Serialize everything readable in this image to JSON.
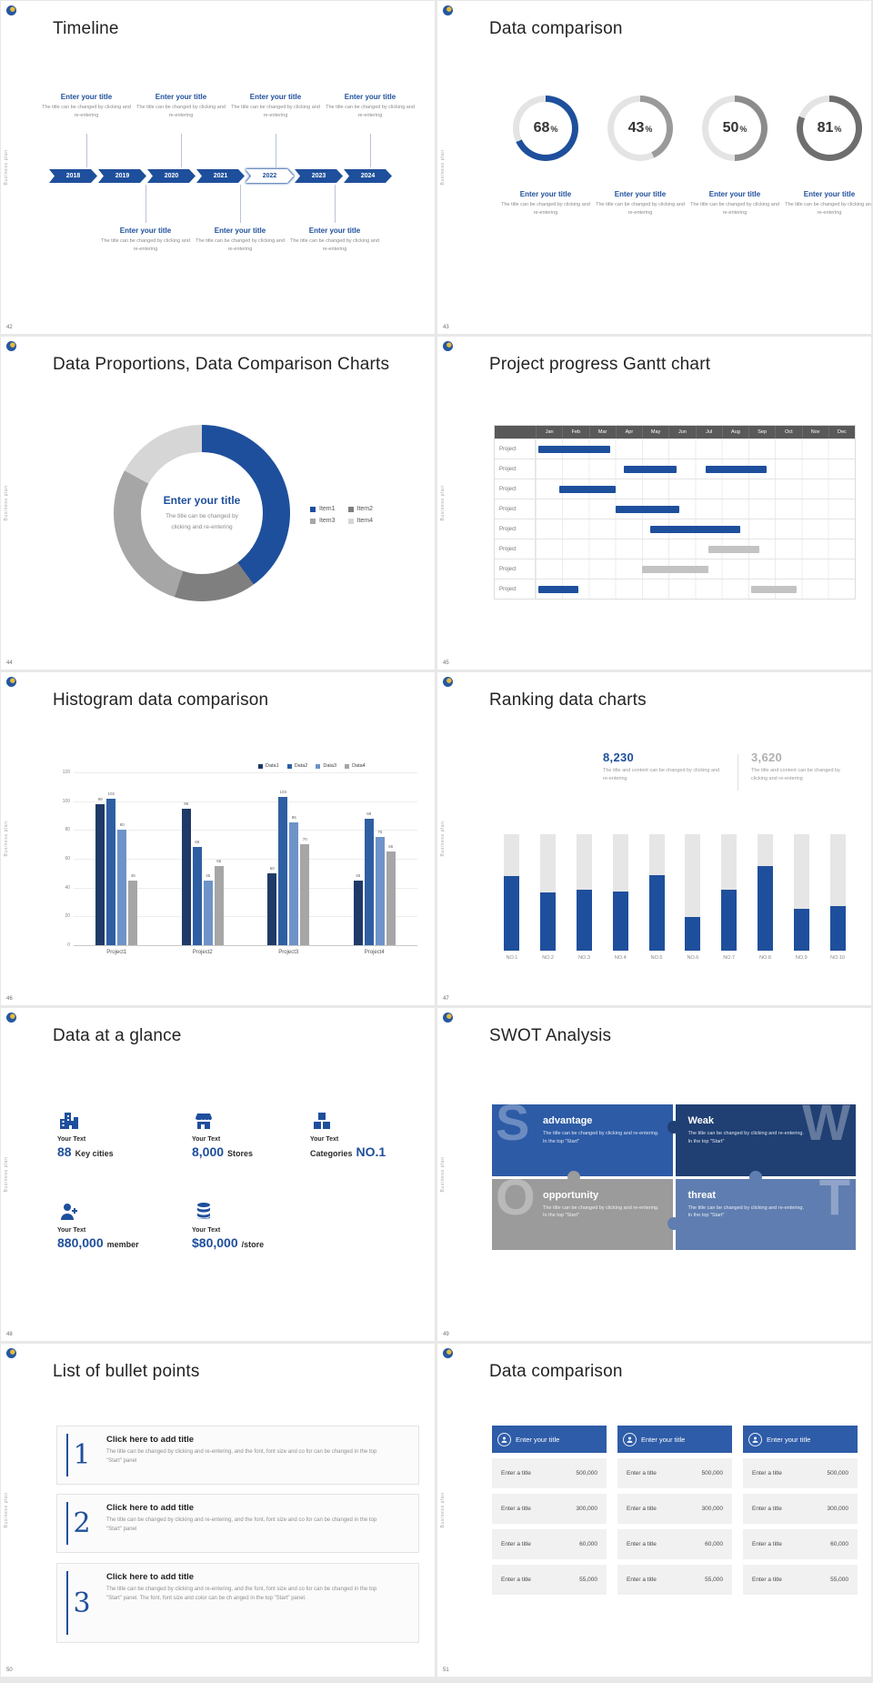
{
  "page": {
    "background": "#e8e8e8",
    "slide_background": "#ffffff"
  },
  "brand": {
    "sidebar_label": "Business plan",
    "accent_color": "#1e4f9c"
  },
  "slides": [
    {
      "number": "42",
      "title": "Timeline",
      "type": "timeline",
      "item_title": "Enter your title",
      "item_desc": "The title can be changed by clicking and re-entering",
      "years": [
        {
          "label": "2018",
          "style": "solid"
        },
        {
          "label": "2019",
          "style": "solid"
        },
        {
          "label": "2020",
          "style": "solid"
        },
        {
          "label": "2021",
          "style": "solid"
        },
        {
          "label": "2022",
          "style": "outline"
        },
        {
          "label": "2023",
          "style": "solid"
        },
        {
          "label": "2024",
          "style": "solid"
        }
      ],
      "top_items": 4,
      "bottom_items": 3
    },
    {
      "number": "43",
      "title": "Data comparison",
      "type": "donuts",
      "item_title": "Enter your title",
      "item_desc": "The title can be changed by clicking and re-entering",
      "chart_data": {
        "type": "donut-set",
        "unit": "%",
        "values": [
          68,
          43,
          50,
          81
        ],
        "ring_colors": [
          "#1e4f9c",
          "#9a9a9a",
          "#8c8c8c",
          "#6e6e6e"
        ],
        "track_color": "#e4e4e4"
      }
    },
    {
      "number": "44",
      "title": "Data Proportions, Data Comparison Charts",
      "type": "pie",
      "center_title": "Enter your title",
      "center_desc": "The title can be changed by clicking and re-entering",
      "chart_data": {
        "type": "donut",
        "legend_position": "right",
        "segments": [
          {
            "label": "Item1",
            "value": 40,
            "color": "#1e4f9c"
          },
          {
            "label": "Item2",
            "value": 15,
            "color": "#7f7f7f"
          },
          {
            "label": "Item3",
            "value": 28,
            "color": "#a6a6a6"
          },
          {
            "label": "Item4",
            "value": 17,
            "color": "#d6d6d6"
          }
        ]
      }
    },
    {
      "number": "45",
      "title": "Project progress Gantt chart",
      "type": "gantt",
      "chart_data": {
        "type": "gantt",
        "months": [
          "Jan",
          "Feb",
          "Mar",
          "Apr",
          "May",
          "Jun",
          "Jul",
          "Aug",
          "Sep",
          "Oct",
          "Nov",
          "Dec"
        ],
        "row_label": "Project",
        "bar_color": "#1e4f9c",
        "alt_bar_color": "#c3c3c3",
        "rows": [
          {
            "bars": [
              {
                "start": 0.1,
                "length": 2.7,
                "color": "#1e4f9c"
              }
            ]
          },
          {
            "bars": [
              {
                "start": 3.3,
                "length": 2.0,
                "color": "#1e4f9c"
              },
              {
                "start": 6.4,
                "length": 2.3,
                "color": "#1e4f9c"
              }
            ]
          },
          {
            "bars": [
              {
                "start": 0.9,
                "length": 2.1,
                "color": "#1e4f9c"
              }
            ]
          },
          {
            "bars": [
              {
                "start": 3.0,
                "length": 2.4,
                "color": "#1e4f9c"
              }
            ]
          },
          {
            "bars": [
              {
                "start": 4.3,
                "length": 3.4,
                "color": "#1e4f9c"
              }
            ]
          },
          {
            "bars": [
              {
                "start": 6.5,
                "length": 1.9,
                "color": "#c3c3c3"
              }
            ]
          },
          {
            "bars": [
              {
                "start": 4.0,
                "length": 2.5,
                "color": "#c3c3c3"
              }
            ]
          },
          {
            "bars": [
              {
                "start": 0.1,
                "length": 1.5,
                "color": "#1e4f9c"
              },
              {
                "start": 8.1,
                "length": 1.7,
                "color": "#c3c3c3"
              }
            ]
          }
        ]
      }
    },
    {
      "number": "46",
      "title": "Histogram data comparison",
      "type": "histogram",
      "chart_data": {
        "type": "bar",
        "categories": [
          "Project1",
          "Project2",
          "Project3",
          "Project4"
        ],
        "series": [
          {
            "name": "Data1",
            "color": "#1f3a68",
            "values": [
              98,
              95,
              50,
              45
            ]
          },
          {
            "name": "Data2",
            "color": "#2e5fa3",
            "values": [
              102,
              68,
              103,
              88
            ]
          },
          {
            "name": "Data3",
            "color": "#6e93c8",
            "values": [
              80,
              45,
              85,
              75
            ]
          },
          {
            "name": "Data4",
            "color": "#a6a6a6",
            "values": [
              45,
              55,
              70,
              65
            ]
          }
        ],
        "ylim": [
          0,
          120
        ],
        "ytick_step": 20,
        "legend_position": "top-right"
      }
    },
    {
      "number": "47",
      "title": "Ranking data charts",
      "type": "ranking",
      "stats": [
        {
          "value": "8,230",
          "color": "#1e4f9c",
          "desc": "The title and content can be changed by clicking and re-entering"
        },
        {
          "value": "3,620",
          "color": "#b0b0b0",
          "desc": "The title and content can be changed by clicking and re-entering"
        }
      ],
      "chart_data": {
        "type": "bar",
        "categories": [
          "NO.1",
          "NO.2",
          "NO.3",
          "NO.4",
          "NO.5",
          "NO.6",
          "NO.7",
          "NO.8",
          "NO.9",
          "NO.10"
        ],
        "values": [
          64,
          50,
          52,
          51,
          65,
          29,
          52,
          73,
          36,
          38
        ],
        "ylim": [
          0,
          100
        ],
        "bar_color": "#1e4f9c",
        "track_color": "#e6e6e6"
      }
    },
    {
      "number": "48",
      "title": "Data at a glance",
      "type": "stats",
      "items": [
        {
          "icon": "city-icon",
          "label": "Your Text",
          "big": "88",
          "small": "Key cities",
          "big_first": true
        },
        {
          "icon": "store-icon",
          "label": "Your Text",
          "big": "8,000",
          "small": "Stores",
          "big_first": true
        },
        {
          "icon": "boxes-icon",
          "label": "Your Text",
          "big": "NO.1",
          "small": "Categories",
          "big_first": false
        },
        {
          "icon": "member-icon",
          "label": "Your Text",
          "big": "880,000",
          "small": "member",
          "big_first": true
        },
        {
          "icon": "coins-icon",
          "label": "Your Text",
          "big": "$80,000",
          "small": "/store",
          "big_first": true
        }
      ]
    },
    {
      "number": "49",
      "title": "SWOT Analysis",
      "type": "swot",
      "pieces": [
        {
          "letter": "S",
          "title": "advantage",
          "color": "#2d5ba6",
          "desc": "The title can be changed by clicking and re-entering. In the top \"Start\""
        },
        {
          "letter": "W",
          "title": "Weak",
          "color": "#203f73",
          "desc": "The title can be changed by clicking and re-entering. In the top \"Start\""
        },
        {
          "letter": "O",
          "title": "opportunity",
          "color": "#9b9b9b",
          "desc": "The title can be changed by clicking and re-entering. In the top \"Start\""
        },
        {
          "letter": "T",
          "title": "threat",
          "color": "#5f7db0",
          "desc": "The title can be changed by clicking and re-entering. In the top \"Start\""
        }
      ]
    },
    {
      "number": "50",
      "title": "List of bullet points",
      "type": "bullets",
      "items": [
        {
          "num": "1",
          "title": "Click here to add title",
          "desc": "The title can be changed by clicking and re-entering, and the font, font size and co for can be changed in the top \"Start\" panel"
        },
        {
          "num": "2",
          "title": "Click here to add title",
          "desc": "The title can be changed by clicking and re-entering, and the font, font size and co for can be changed in the top \"Start\" panel"
        },
        {
          "num": "3",
          "title": "Click here to add title",
          "desc": "The title can be changed by clicking and re-entering, and the font, font size and co for can be changed in the top \"Start\" panel. The font, font size and color can be ch anged in the top \"Start\" panel."
        }
      ]
    },
    {
      "number": "51",
      "title": "Data comparison",
      "type": "tables",
      "card_title": "Enter your title",
      "row_label": "Enter a title",
      "header_color": "#2e5ca8",
      "cards": [
        {
          "values": [
            "500,000",
            "300,000",
            "60,000",
            "55,000"
          ]
        },
        {
          "values": [
            "500,000",
            "300,000",
            "60,000",
            "55,000"
          ]
        },
        {
          "values": [
            "500,000",
            "300,000",
            "60,000",
            "55,000"
          ]
        }
      ]
    }
  ]
}
